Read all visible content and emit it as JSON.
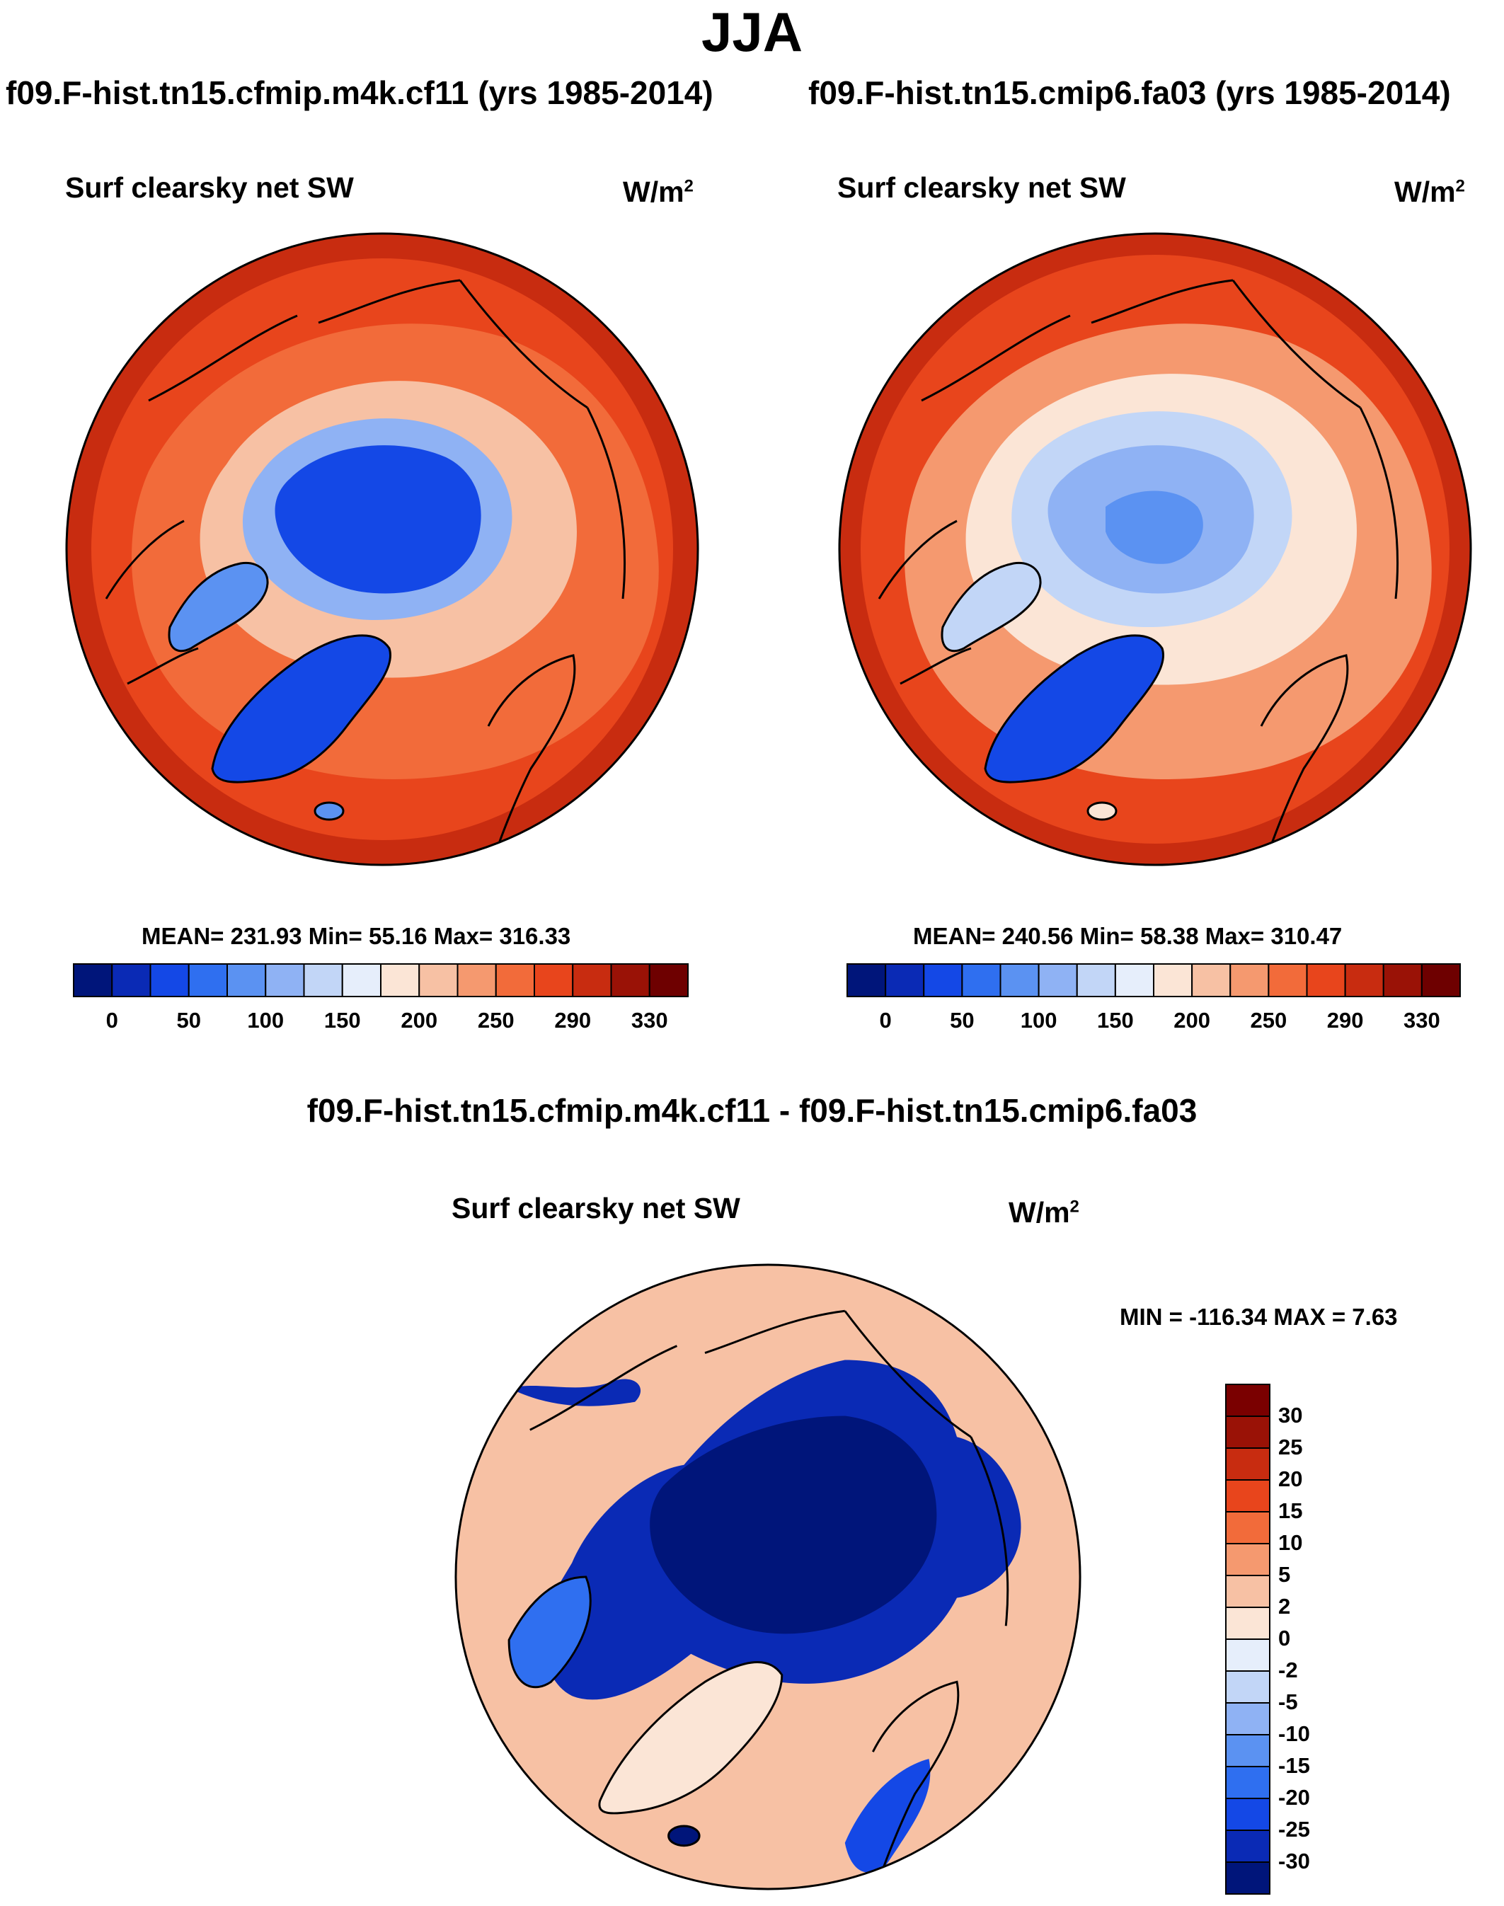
{
  "figure": {
    "season": "JJA",
    "panel_left": {
      "case_title": "f09.F-hist.tn15.cfmip.m4k.cf11 (yrs 1985-2014)",
      "variable": "Surf clearsky net SW",
      "units": "W/m",
      "units_exp": "2",
      "stats": "MEAN= 231.93  Min=  55.16  Max= 316.33"
    },
    "panel_right": {
      "case_title": "f09.F-hist.tn15.cmip6.fa03 (yrs 1985-2014)",
      "variable": "Surf clearsky net SW",
      "units": "W/m",
      "units_exp": "2",
      "stats": "MEAN= 240.56  Min=  58.38  Max= 310.47"
    },
    "panel_diff": {
      "case_title": "f09.F-hist.tn15.cfmip.m4k.cf11 - f09.F-hist.tn15.cmip6.fa03",
      "variable": "Surf clearsky net SW",
      "units": "W/m",
      "units_exp": "2",
      "stats": "MIN = -116.34 MAX =   7.63"
    },
    "abs_colorbar": {
      "colors": [
        "#00157a",
        "#0a2ab5",
        "#1448e6",
        "#2f6ff0",
        "#5b92f2",
        "#8fb2f4",
        "#c2d6f7",
        "#e6eefb",
        "#fbe5d6",
        "#f7c1a4",
        "#f5996f",
        "#f26b3a",
        "#e8451c",
        "#c82c10",
        "#9a1206",
        "#6e0000"
      ],
      "labels": [
        "0",
        "50",
        "100",
        "150",
        "200",
        "250",
        "290",
        "330"
      ]
    },
    "diff_colorbar": {
      "colors": [
        "#00157a",
        "#0a2ab5",
        "#1448e6",
        "#2f6ff0",
        "#5b92f2",
        "#8fb2f4",
        "#c2d6f7",
        "#e6eefb",
        "#fbe5d6",
        "#f7c1a4",
        "#f5996f",
        "#f26b3a",
        "#e8451c",
        "#c82c10",
        "#9a1206",
        "#7a0000"
      ],
      "labels": [
        "30",
        "25",
        "20",
        "15",
        "10",
        "5",
        "2",
        "0",
        "-2",
        "-5",
        "-10",
        "-15",
        "-20",
        "-25",
        "-30"
      ]
    }
  }
}
